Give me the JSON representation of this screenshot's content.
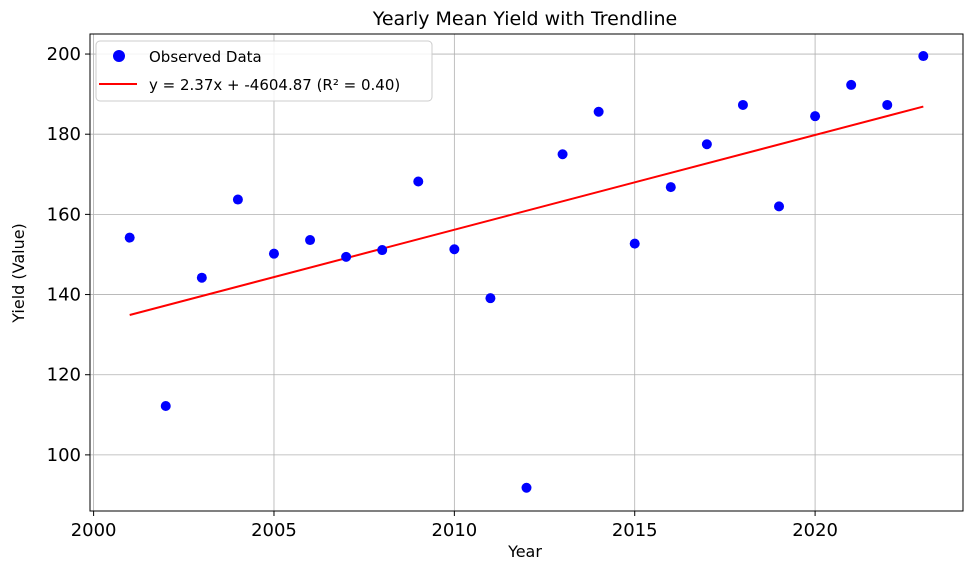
{
  "chart_data": {
    "type": "scatter",
    "title": "Yearly Mean Yield with Trendline",
    "xlabel": "Year",
    "ylabel": "Yield (Value)",
    "xlim": [
      1999.9,
      2024.1
    ],
    "ylim": [
      86,
      205
    ],
    "x_ticks": [
      2000,
      2005,
      2010,
      2015,
      2020
    ],
    "y_ticks": [
      100,
      120,
      140,
      160,
      180,
      200
    ],
    "grid": true,
    "legend_position": "top-left",
    "series": [
      {
        "name": "Observed Data",
        "kind": "scatter",
        "color": "#0000ff",
        "x": [
          2001,
          2002,
          2003,
          2004,
          2005,
          2006,
          2007,
          2008,
          2009,
          2010,
          2011,
          2012,
          2013,
          2014,
          2015,
          2016,
          2017,
          2018,
          2019,
          2020,
          2021,
          2022,
          2023
        ],
        "y": [
          154.2,
          112.2,
          144.2,
          163.7,
          150.2,
          153.6,
          149.4,
          151.1,
          168.2,
          151.3,
          139.1,
          91.8,
          175.0,
          185.6,
          152.7,
          166.8,
          177.5,
          187.3,
          162.0,
          184.5,
          192.3,
          187.3,
          199.5
        ]
      },
      {
        "name": "y = 2.37x + -4604.87 (R² = 0.40)",
        "kind": "line",
        "color": "#ff0000",
        "x": [
          2001,
          2023
        ],
        "y": [
          134.9,
          186.9
        ]
      }
    ]
  }
}
